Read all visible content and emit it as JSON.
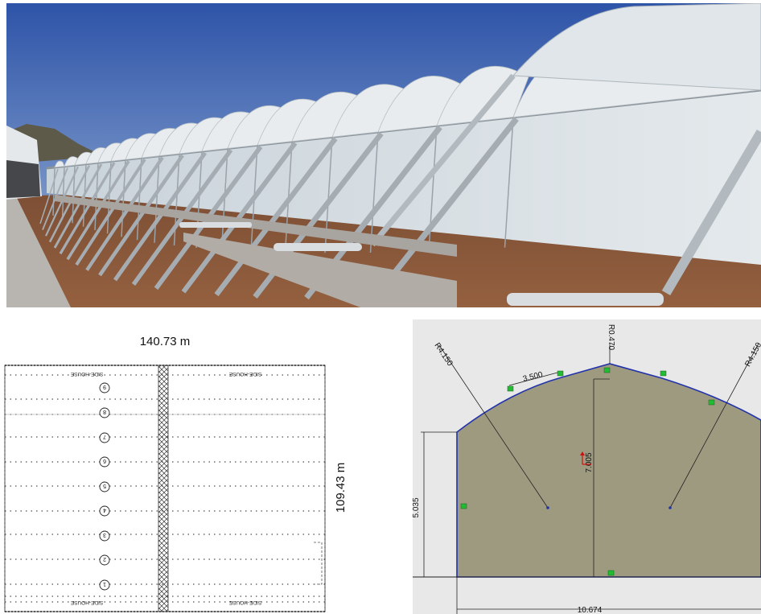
{
  "plan": {
    "width_label": "140.73 m",
    "depth_label": "109.43 m",
    "side_house_label": "SIDE-HOUSE",
    "bay_numbers": [
      "9",
      "8",
      "7",
      "6",
      "5",
      "4",
      "3",
      "2",
      "1"
    ]
  },
  "section": {
    "dimensions": {
      "roof_radius_left": "R4.150",
      "roof_radius_right": "R4.150",
      "ridge_radius": "R0.470",
      "roof_segment": "3.500",
      "ridge_height": "7.005",
      "wall_height": "5.035",
      "span_width": "10.674"
    },
    "colors": {
      "fill": "#9e9a80",
      "outline": "#2233aa",
      "background": "#e8e8e8",
      "marker": "#22bb33"
    }
  },
  "photo": {
    "colors": {
      "sky": "#3f62b2",
      "soil": "#8a5538",
      "panel": "#d7dee3"
    }
  }
}
